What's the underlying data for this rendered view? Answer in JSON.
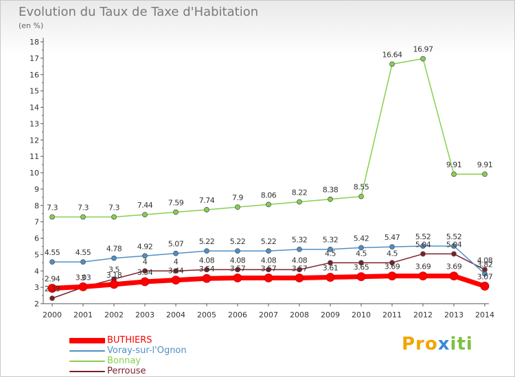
{
  "chart_data": {
    "type": "line",
    "title": "Evolution du Taux de Taxe d'Habitation",
    "subtitle": "(en %)",
    "x": [
      "2000",
      "2001",
      "2002",
      "2003",
      "2004",
      "2005",
      "2006",
      "2007",
      "2008",
      "2009",
      "2010",
      "2011",
      "2012",
      "2013",
      "2014"
    ],
    "ylim": [
      2,
      18
    ],
    "yticks": [
      2,
      3,
      4,
      5,
      6,
      7,
      8,
      9,
      10,
      11,
      12,
      13,
      14,
      15,
      16,
      17,
      18
    ],
    "grid": false,
    "legend_position": "bottom-left",
    "series": [
      {
        "name": "BUTHIERS",
        "color": "#ff0000",
        "values": [
          2.94,
          3.03,
          3.18,
          3.34,
          3.44,
          3.54,
          3.57,
          3.57,
          3.57,
          3.61,
          3.65,
          3.69,
          3.69,
          3.69,
          3.07
        ],
        "labels": [
          "2.94",
          "3.03",
          "3.18",
          "3.34",
          "3.44",
          "3.54",
          "3.57",
          "3.57",
          "3.57",
          "3.61",
          "3.65",
          "3.69",
          "3.69",
          "3.69",
          "3.07"
        ]
      },
      {
        "name": "Voray-sur-l'Ognon",
        "color": "#4f8fc5",
        "values": [
          4.55,
          4.55,
          4.78,
          4.92,
          5.07,
          5.22,
          5.22,
          5.22,
          5.32,
          5.32,
          5.42,
          5.47,
          5.52,
          5.52,
          3.82
        ],
        "labels": [
          "4.55",
          "4.55",
          "4.78",
          "4.92",
          "5.07",
          "5.22",
          "5.22",
          "5.22",
          "5.32",
          "5.32",
          "5.42",
          "5.47",
          "5.52",
          "5.52",
          "3.82"
        ]
      },
      {
        "name": "Bonnay",
        "color": "#86cf4e",
        "values": [
          7.3,
          7.3,
          7.3,
          7.44,
          7.59,
          7.74,
          7.9,
          8.06,
          8.22,
          8.38,
          8.55,
          16.64,
          16.97,
          9.91,
          9.91
        ],
        "labels": [
          "7.3",
          "7.3",
          "7.3",
          "7.44",
          "7.59",
          "7.74",
          "7.9",
          "8.06",
          "8.22",
          "8.38",
          "8.55",
          "16.64",
          "16.97",
          "9.91",
          "9.91"
        ]
      },
      {
        "name": "Perrouse",
        "color": "#7a1f2a",
        "values": [
          2.33,
          3.0,
          3.5,
          4.0,
          4.0,
          4.08,
          4.08,
          4.08,
          4.08,
          4.5,
          4.5,
          4.5,
          5.04,
          5.04,
          4.08
        ],
        "labels": [
          "2.33",
          "3",
          "3.5",
          "4",
          "4",
          "4.08",
          "4.08",
          "4.08",
          "4.08",
          "4.5",
          "4.5",
          "4.5",
          "5.04",
          "5.04",
          "4.08"
        ]
      }
    ]
  },
  "branding": {
    "logo_text": "Proxiti"
  }
}
